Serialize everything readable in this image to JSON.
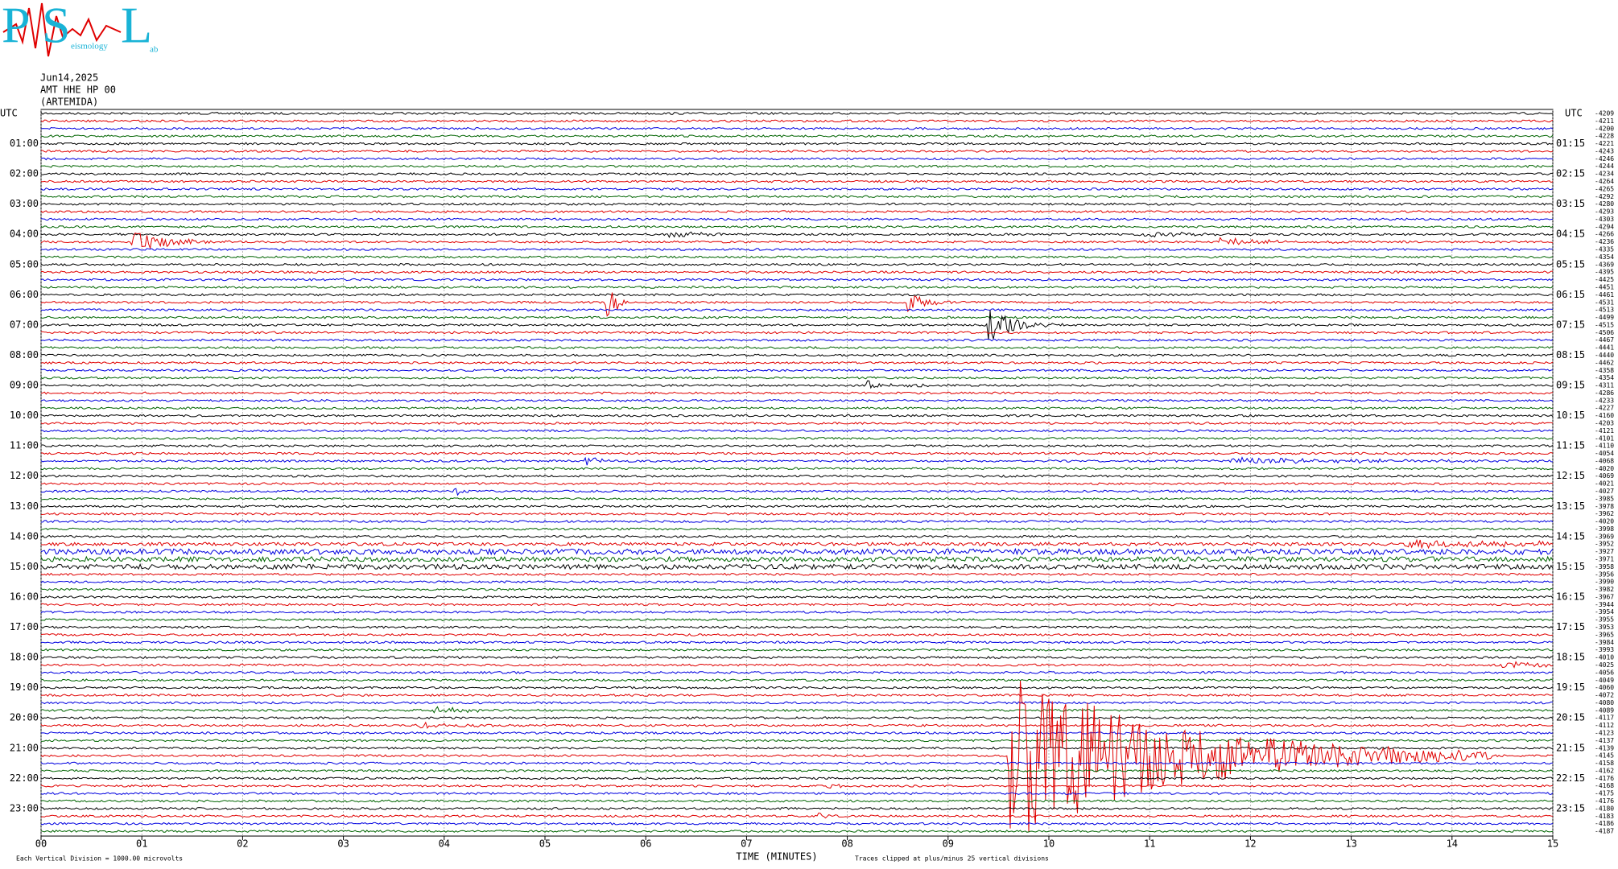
{
  "chart_data": {
    "type": "helicorder",
    "logo": {
      "letters": [
        "P",
        "S",
        "L"
      ],
      "words": [
        "eismology",
        "ab"
      ]
    },
    "title_lines": [
      "Jun14,2025",
      "AMT HHE HP 00",
      "(ARTEMIDA)"
    ],
    "utc_label": "UTC",
    "hour_labels_left": [
      "01:00",
      "02:00",
      "03:00",
      "04:00",
      "05:00",
      "06:00",
      "07:00",
      "08:00",
      "09:00",
      "10:00",
      "11:00",
      "12:00",
      "13:00",
      "14:00",
      "15:00",
      "16:00",
      "17:00",
      "18:00",
      "19:00",
      "20:00",
      "21:00",
      "22:00",
      "23:00"
    ],
    "hour_labels_right": [
      "01:15",
      "02:15",
      "03:15",
      "04:15",
      "05:15",
      "06:15",
      "07:15",
      "08:15",
      "09:15",
      "10:15",
      "11:15",
      "12:15",
      "13:15",
      "14:15",
      "15:15",
      "16:15",
      "17:15",
      "18:15",
      "19:15",
      "20:15",
      "21:15",
      "22:15",
      "23:15"
    ],
    "row_offsets": [
      -4209,
      -4211,
      -4200,
      -4228,
      -4221,
      -4243,
      -4246,
      -4244,
      -4234,
      -4264,
      -4265,
      -4292,
      -4280,
      -4293,
      -4303,
      -4294,
      -4266,
      -4236,
      -4335,
      -4354,
      -4369,
      -4395,
      -4425,
      -4451,
      -4461,
      -4531,
      -4513,
      -4499,
      -4515,
      -4506,
      -4467,
      -4441,
      -4440,
      -4462,
      -4358,
      -4354,
      -4311,
      -4286,
      -4233,
      -4227,
      -4160,
      -4203,
      -4121,
      -4101,
      -4110,
      -4054,
      -4068,
      -4020,
      -4069,
      -4021,
      -4027,
      -3985,
      -3978,
      -3962,
      -4020,
      -3998,
      -3969,
      -3952,
      -3927,
      -3971,
      -3958,
      -3956,
      -3990,
      -3982,
      -3967,
      -3944,
      -3954,
      -3955,
      -3953,
      -3965,
      -3984,
      -3993,
      -4010,
      -4025,
      -4056,
      -4049,
      -4060,
      -4072,
      -4080,
      -4089,
      -4117,
      -4112,
      -4123,
      -4137,
      -4139,
      -4145,
      -4158,
      -4162,
      -4176,
      -4168,
      -4175,
      -4176,
      -4180,
      -4183,
      -4186,
      -4187
    ],
    "trace_colors": [
      "#000000",
      "#e00000",
      "#0000e0",
      "#006400"
    ],
    "xlim": [
      0,
      15
    ],
    "xticks": [
      {
        "value": 0,
        "label": "00"
      },
      {
        "value": 1,
        "label": "01"
      },
      {
        "value": 2,
        "label": "02"
      },
      {
        "value": 3,
        "label": "03"
      },
      {
        "value": 4,
        "label": "04"
      },
      {
        "value": 5,
        "label": "05"
      },
      {
        "value": 6,
        "label": "06"
      },
      {
        "value": 7,
        "label": "07"
      },
      {
        "value": 8,
        "label": "08"
      },
      {
        "value": 9,
        "label": "09"
      },
      10,
      11,
      12,
      13,
      14,
      15
    ],
    "x_label": "TIME (MINUTES)",
    "scale_note": "Each Vertical Division = 1000.00 microvolts",
    "clip_note": "Traces clipped at plus/minus 25 vertical divisions",
    "grid": true
  }
}
